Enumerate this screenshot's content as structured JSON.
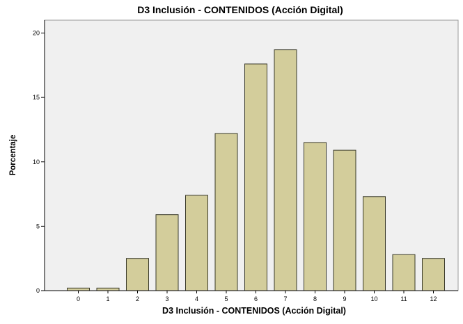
{
  "chart_data": {
    "type": "bar",
    "title": "D3 Inclusión - CONTENIDOS (Acción Digital)",
    "xlabel": "D3 Inclusión - CONTENIDOS (Acción Digital)",
    "ylabel": "Porcentaje",
    "categories": [
      "0",
      "1",
      "2",
      "3",
      "4",
      "5",
      "6",
      "7",
      "8",
      "9",
      "10",
      "11",
      "12"
    ],
    "values": [
      0.2,
      0.2,
      2.5,
      5.9,
      7.4,
      12.2,
      17.6,
      18.7,
      11.5,
      10.9,
      7.3,
      2.8,
      2.5
    ],
    "ylim": [
      0,
      21
    ],
    "yticks": [
      "0",
      "5",
      "10",
      "15",
      "20"
    ],
    "grid": false,
    "legend": "none",
    "colors": {
      "bar_fill": "#d3cd9b",
      "bar_stroke": "#3a3a2a",
      "plot_background": "#f0f0f0",
      "axis": "#000000"
    }
  }
}
